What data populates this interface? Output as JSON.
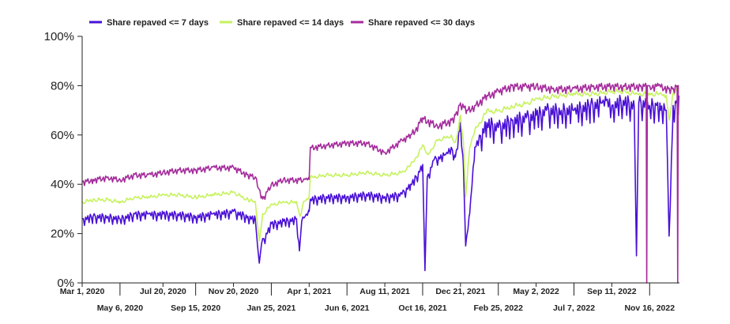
{
  "chart_data": {
    "type": "line",
    "title": "",
    "xlabel": "",
    "ylabel": "",
    "y_format": "percent",
    "ylim": [
      0,
      100
    ],
    "y_ticks": [
      0,
      20,
      40,
      60,
      80,
      100
    ],
    "y_tick_labels": [
      "0%",
      "20%",
      "40%",
      "60%",
      "80%",
      "100%"
    ],
    "xlim": [
      "2020-03-01",
      "2023-01-07"
    ],
    "x_ticks": [
      "2020-03-01",
      "2020-05-06",
      "2020-07-20",
      "2020-09-15",
      "2020-11-20",
      "2021-01-25",
      "2021-04-01",
      "2021-06-06",
      "2021-08-11",
      "2021-10-16",
      "2021-12-21",
      "2022-02-25",
      "2022-05-02",
      "2022-07-07",
      "2022-09-11",
      "2022-11-16"
    ],
    "x_tick_labels": [
      "Mar 1, 2020",
      "May 6, 2020",
      "Jul 20, 2020",
      "Sep 15, 2020",
      "Nov 20, 2020",
      "Jan 25, 2021",
      "Apr 1, 2021",
      "Jun 6, 2021",
      "Aug 11, 2021",
      "Oct 16, 2021",
      "Dec 21, 2021",
      "Feb 25, 2022",
      "May 2, 2022",
      "Jul 7, 2022",
      "Sep 11, 2022",
      "Nov 16, 2022"
    ],
    "grid": false,
    "legend_position": "top-left",
    "series": [
      {
        "name": "Share repaved <= 7 days",
        "color": "#4a10d6",
        "x": [
          "2020-03-01",
          "2020-03-20",
          "2020-04-15",
          "2020-05-06",
          "2020-06-01",
          "2020-06-25",
          "2020-07-20",
          "2020-08-15",
          "2020-09-15",
          "2020-10-15",
          "2020-11-20",
          "2020-12-15",
          "2020-12-28",
          "2021-01-01",
          "2021-01-04",
          "2021-01-08",
          "2021-01-25",
          "2021-02-15",
          "2021-03-10",
          "2021-03-15",
          "2021-03-19",
          "2021-03-25",
          "2021-04-01",
          "2021-04-03",
          "2021-05-01",
          "2021-06-06",
          "2021-07-10",
          "2021-08-11",
          "2021-09-10",
          "2021-09-25",
          "2021-10-05",
          "2021-10-16",
          "2021-10-20",
          "2021-10-24",
          "2021-11-05",
          "2021-11-25",
          "2021-12-05",
          "2021-12-12",
          "2021-12-21",
          "2021-12-26",
          "2021-12-30",
          "2022-01-06",
          "2022-01-15",
          "2022-02-05",
          "2022-02-25",
          "2022-03-20",
          "2022-04-15",
          "2022-05-02",
          "2022-05-20",
          "2022-06-15",
          "2022-07-07",
          "2022-08-05",
          "2022-08-25",
          "2022-09-01",
          "2022-09-11",
          "2022-10-01",
          "2022-10-20",
          "2022-10-24",
          "2022-10-28",
          "2022-11-10",
          "2022-11-16",
          "2022-11-28",
          "2022-12-05",
          "2022-12-15",
          "2022-12-20",
          "2022-12-27",
          "2023-01-01",
          "2023-01-06"
        ],
        "y": [
          26,
          27,
          27,
          26,
          28,
          28,
          28,
          28,
          27,
          28,
          29,
          27,
          26,
          15,
          8,
          16,
          24,
          25,
          26,
          13,
          25,
          27,
          29,
          34,
          35,
          35,
          36,
          35,
          36,
          40,
          43,
          48,
          5,
          43,
          50,
          52,
          55,
          51,
          65,
          48,
          15,
          28,
          55,
          65,
          63,
          66,
          67,
          68,
          70,
          70,
          70,
          72,
          73,
          74,
          72,
          74,
          72,
          11,
          73,
          73,
          72,
          72,
          70,
          70,
          19,
          72,
          73,
          76
        ]
      },
      {
        "name": "Share repaved <= 14 days",
        "color": "#c6f25e",
        "x": [
          "2020-03-01",
          "2020-03-20",
          "2020-04-15",
          "2020-05-06",
          "2020-06-01",
          "2020-06-25",
          "2020-07-20",
          "2020-08-15",
          "2020-09-15",
          "2020-10-15",
          "2020-11-20",
          "2020-12-15",
          "2020-12-28",
          "2021-01-04",
          "2021-01-10",
          "2021-01-25",
          "2021-02-15",
          "2021-03-10",
          "2021-03-16",
          "2021-03-22",
          "2021-04-01",
          "2021-04-03",
          "2021-05-01",
          "2021-06-06",
          "2021-07-10",
          "2021-08-11",
          "2021-09-10",
          "2021-09-25",
          "2021-10-05",
          "2021-10-16",
          "2021-10-25",
          "2021-11-10",
          "2021-12-05",
          "2021-12-12",
          "2021-12-21",
          "2021-12-26",
          "2021-12-30",
          "2022-01-06",
          "2022-01-15",
          "2022-02-05",
          "2022-02-25",
          "2022-03-20",
          "2022-04-15",
          "2022-05-02",
          "2022-06-01",
          "2022-07-07",
          "2022-08-10",
          "2022-09-11",
          "2022-10-01",
          "2022-10-24",
          "2022-11-16",
          "2022-12-05",
          "2022-12-15",
          "2022-12-20",
          "2022-12-27",
          "2023-01-06"
        ],
        "y": [
          33,
          34,
          34,
          33,
          35,
          35,
          36,
          36,
          35,
          36,
          37,
          34,
          33,
          17,
          28,
          32,
          33,
          33,
          27,
          33,
          35,
          43,
          44,
          44,
          45,
          44,
          45,
          48,
          51,
          56,
          52,
          58,
          60,
          57,
          68,
          58,
          35,
          55,
          62,
          70,
          70,
          72,
          73,
          75,
          76,
          77,
          77,
          78,
          78,
          77,
          77,
          77,
          76,
          66,
          77,
          80
        ]
      },
      {
        "name": "Share repaved <= 30 days",
        "color": "#a52c9c",
        "x": [
          "2020-03-01",
          "2020-03-20",
          "2020-04-15",
          "2020-05-06",
          "2020-06-01",
          "2020-06-25",
          "2020-07-20",
          "2020-08-15",
          "2020-09-15",
          "2020-10-15",
          "2020-11-20",
          "2020-12-15",
          "2020-12-28",
          "2021-01-10",
          "2021-01-25",
          "2021-02-15",
          "2021-03-25",
          "2021-04-01",
          "2021-04-03",
          "2021-05-01",
          "2021-06-06",
          "2021-07-10",
          "2021-08-11",
          "2021-09-10",
          "2021-09-25",
          "2021-10-05",
          "2021-10-16",
          "2021-11-10",
          "2021-12-05",
          "2021-12-12",
          "2021-12-21",
          "2022-01-01",
          "2022-01-15",
          "2022-02-05",
          "2022-02-25",
          "2022-03-20",
          "2022-04-15",
          "2022-05-02",
          "2022-06-01",
          "2022-07-07",
          "2022-08-10",
          "2022-09-11",
          "2022-10-01",
          "2022-11-01",
          "2022-11-10",
          "2022-11-11",
          "2022-11-12",
          "2022-11-16",
          "2022-12-01",
          "2022-12-20",
          "2022-12-27",
          "2023-01-03",
          "2023-01-04",
          "2023-01-05",
          "2023-01-06"
        ],
        "y": [
          41,
          42,
          43,
          42,
          44,
          44,
          45,
          46,
          46,
          47,
          47,
          44,
          43,
          34,
          40,
          42,
          42,
          42,
          55,
          56,
          57,
          57,
          53,
          58,
          60,
          63,
          67,
          64,
          66,
          68,
          73,
          70,
          72,
          76,
          78,
          80,
          80,
          80,
          79,
          79,
          80,
          80,
          80,
          80,
          80,
          0,
          80,
          80,
          80,
          79,
          79,
          80,
          0,
          80,
          80
        ]
      }
    ]
  }
}
